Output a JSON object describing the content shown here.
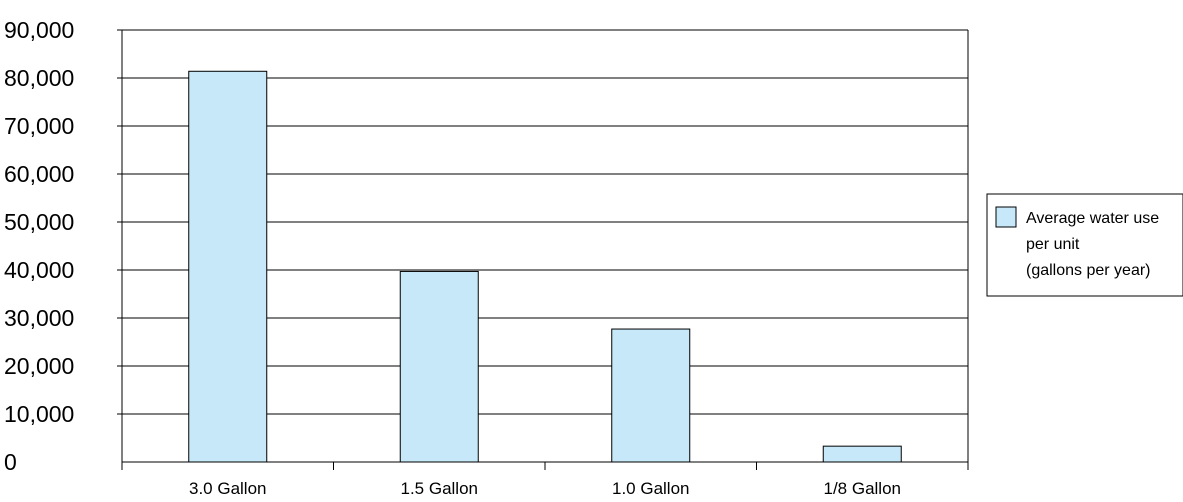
{
  "chart_data": {
    "type": "bar",
    "categories": [
      "3.0 Gallon",
      "1.5 Gallon",
      "1.0 Gallon",
      "1/8 Gallon"
    ],
    "series": [
      {
        "name": "Average water use per unit (gallons per year)",
        "values": [
          81400,
          39700,
          27700,
          3300
        ]
      }
    ],
    "ylim": [
      0,
      90000
    ],
    "yticks": [
      "0",
      "10,000",
      "20,000",
      "30,000",
      "40,000",
      "50,000",
      "60,000",
      "70,000",
      "80,000",
      "90,000"
    ],
    "legend": {
      "position": "right",
      "lines": [
        "Average water use",
        "per unit",
        "(gallons per year)"
      ]
    },
    "grid": true,
    "colors": {
      "bar_fill": "#c6e8f8",
      "bar_stroke": "#000000",
      "grid": "#000000"
    }
  }
}
